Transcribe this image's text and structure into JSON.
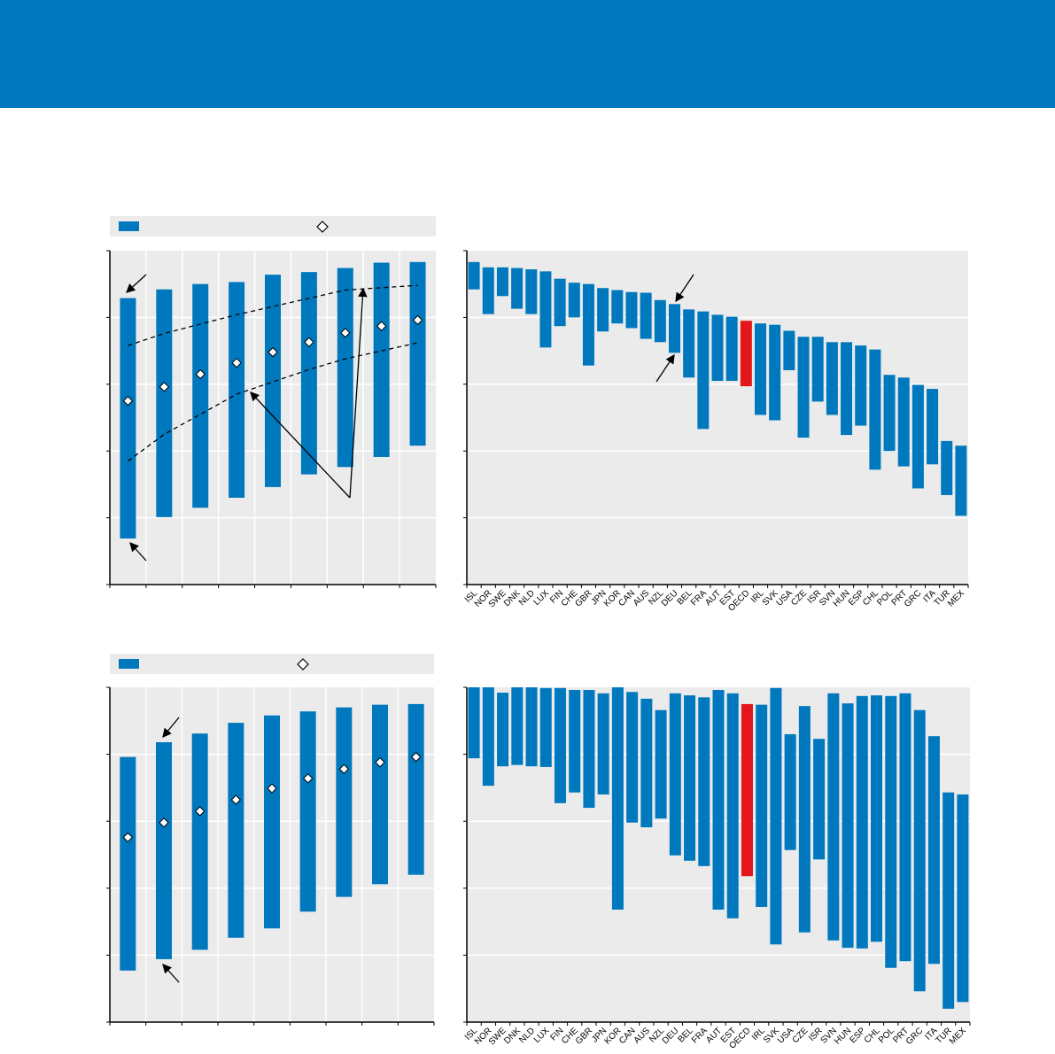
{
  "colors": {
    "banner": "#0078be",
    "bar": "#0078be",
    "highlight": "#e3161b",
    "plot_bg": "#ebebeb"
  },
  "legend": {
    "bar_icon": "bar-swatch",
    "marker_icon": "diamond-marker"
  },
  "chart_data": [
    {
      "type": "bar",
      "subtype": "range-with-marker",
      "ylim": [
        0,
        5
      ],
      "grid": true,
      "legend_position": "top",
      "series": [
        {
          "name": "range_top",
          "values": [
            4.29,
            4.42,
            4.5,
            4.53,
            4.64,
            4.68,
            4.74,
            4.82,
            4.83
          ]
        },
        {
          "name": "range_bottom",
          "values": [
            0.69,
            1.01,
            1.15,
            1.3,
            1.46,
            1.65,
            1.76,
            1.91,
            2.08
          ]
        },
        {
          "name": "marker",
          "values": [
            2.75,
            2.96,
            3.15,
            3.32,
            3.48,
            3.63,
            3.77,
            3.87,
            3.96
          ]
        }
      ],
      "dashed_lines": [
        {
          "name": "upper",
          "x": [
            0,
            1,
            3,
            6,
            8
          ],
          "y": [
            3.58,
            3.76,
            4.04,
            4.41,
            4.48
          ]
        },
        {
          "name": "lower",
          "x": [
            0,
            1,
            3,
            5,
            6,
            8
          ],
          "y": [
            1.85,
            2.25,
            2.85,
            3.22,
            3.38,
            3.62
          ]
        }
      ]
    },
    {
      "type": "bar",
      "subtype": "range",
      "ylim": [
        0,
        5
      ],
      "grid": true,
      "highlight": "OECD",
      "categories": [
        "ISL",
        "NOR",
        "SWE",
        "DNK",
        "NLD",
        "LUX",
        "FIN",
        "CHE",
        "GBR",
        "JPN",
        "KOR",
        "CAN",
        "AUS",
        "NZL",
        "DEU",
        "BEL",
        "FRA",
        "AUT",
        "EST",
        "OECD",
        "IRL",
        "SVK",
        "USA",
        "CZE",
        "ISR",
        "SVN",
        "HUN",
        "ESP",
        "CHL",
        "POL",
        "PRT",
        "GRC",
        "ITA",
        "TUR",
        "MEX"
      ],
      "series": [
        {
          "name": "range_top",
          "values": [
            4.83,
            4.75,
            4.75,
            4.74,
            4.72,
            4.69,
            4.58,
            4.52,
            4.5,
            4.44,
            4.41,
            4.38,
            4.37,
            4.26,
            4.2,
            4.12,
            4.09,
            4.04,
            4.01,
            3.95,
            3.91,
            3.89,
            3.8,
            3.71,
            3.71,
            3.63,
            3.63,
            3.58,
            3.52,
            3.14,
            3.1,
            2.99,
            2.93,
            2.15,
            2.08
          ]
        },
        {
          "name": "range_bottom",
          "values": [
            4.42,
            4.05,
            4.32,
            4.13,
            4.05,
            3.55,
            3.87,
            4.0,
            3.28,
            3.79,
            3.91,
            3.84,
            3.68,
            3.63,
            3.47,
            3.1,
            2.33,
            3.05,
            3.05,
            2.97,
            2.54,
            2.46,
            3.21,
            2.2,
            2.74,
            2.54,
            2.24,
            2.38,
            1.72,
            2.0,
            1.77,
            1.44,
            1.8,
            1.34,
            1.03
          ]
        }
      ]
    },
    {
      "type": "bar",
      "subtype": "range-with-marker",
      "ylim": [
        0,
        5
      ],
      "grid": true,
      "legend_position": "top",
      "series": [
        {
          "name": "range_top",
          "values": [
            3.96,
            4.18,
            4.31,
            4.47,
            4.58,
            4.64,
            4.7,
            4.74,
            4.75
          ]
        },
        {
          "name": "range_bottom",
          "values": [
            0.77,
            0.94,
            1.08,
            1.26,
            1.4,
            1.65,
            1.87,
            2.06,
            2.2
          ]
        },
        {
          "name": "marker",
          "values": [
            2.76,
            2.98,
            3.15,
            3.32,
            3.49,
            3.64,
            3.78,
            3.88,
            3.96
          ]
        }
      ]
    },
    {
      "type": "bar",
      "subtype": "range",
      "ylim": [
        0,
        5
      ],
      "grid": true,
      "highlight": "OECD",
      "categories": [
        "ISL",
        "NOR",
        "SWE",
        "DNK",
        "NLD",
        "LUX",
        "FIN",
        "CHE",
        "GBR",
        "JPN",
        "KOR",
        "CAN",
        "AUS",
        "NZL",
        "DEU",
        "BEL",
        "FRA",
        "AUT",
        "EST",
        "OECD",
        "IRL",
        "SVK",
        "USA",
        "CZE",
        "ISR",
        "SVN",
        "HUN",
        "ESP",
        "CHL",
        "POL",
        "PRT",
        "GRC",
        "ITA",
        "TUR",
        "MEX"
      ],
      "series": [
        {
          "name": "range_top",
          "values": [
            5.0,
            5.0,
            4.92,
            5.0,
            5.0,
            4.99,
            4.99,
            4.96,
            4.96,
            4.91,
            5.0,
            4.93,
            4.83,
            4.66,
            4.91,
            4.88,
            4.85,
            4.96,
            4.91,
            4.75,
            4.74,
            4.99,
            4.3,
            4.72,
            4.23,
            4.91,
            4.76,
            4.87,
            4.88,
            4.87,
            4.91,
            4.66,
            4.27,
            3.43,
            3.4
          ]
        },
        {
          "name": "range_bottom",
          "values": [
            3.94,
            3.53,
            3.82,
            3.84,
            3.82,
            3.81,
            3.27,
            3.43,
            3.2,
            3.4,
            1.68,
            2.98,
            2.91,
            3.04,
            2.49,
            2.41,
            2.33,
            1.68,
            1.55,
            2.18,
            1.72,
            1.16,
            2.57,
            1.34,
            2.43,
            1.22,
            1.11,
            1.1,
            1.2,
            0.81,
            0.91,
            0.46,
            0.87,
            0.2,
            0.3
          ]
        }
      ]
    }
  ]
}
